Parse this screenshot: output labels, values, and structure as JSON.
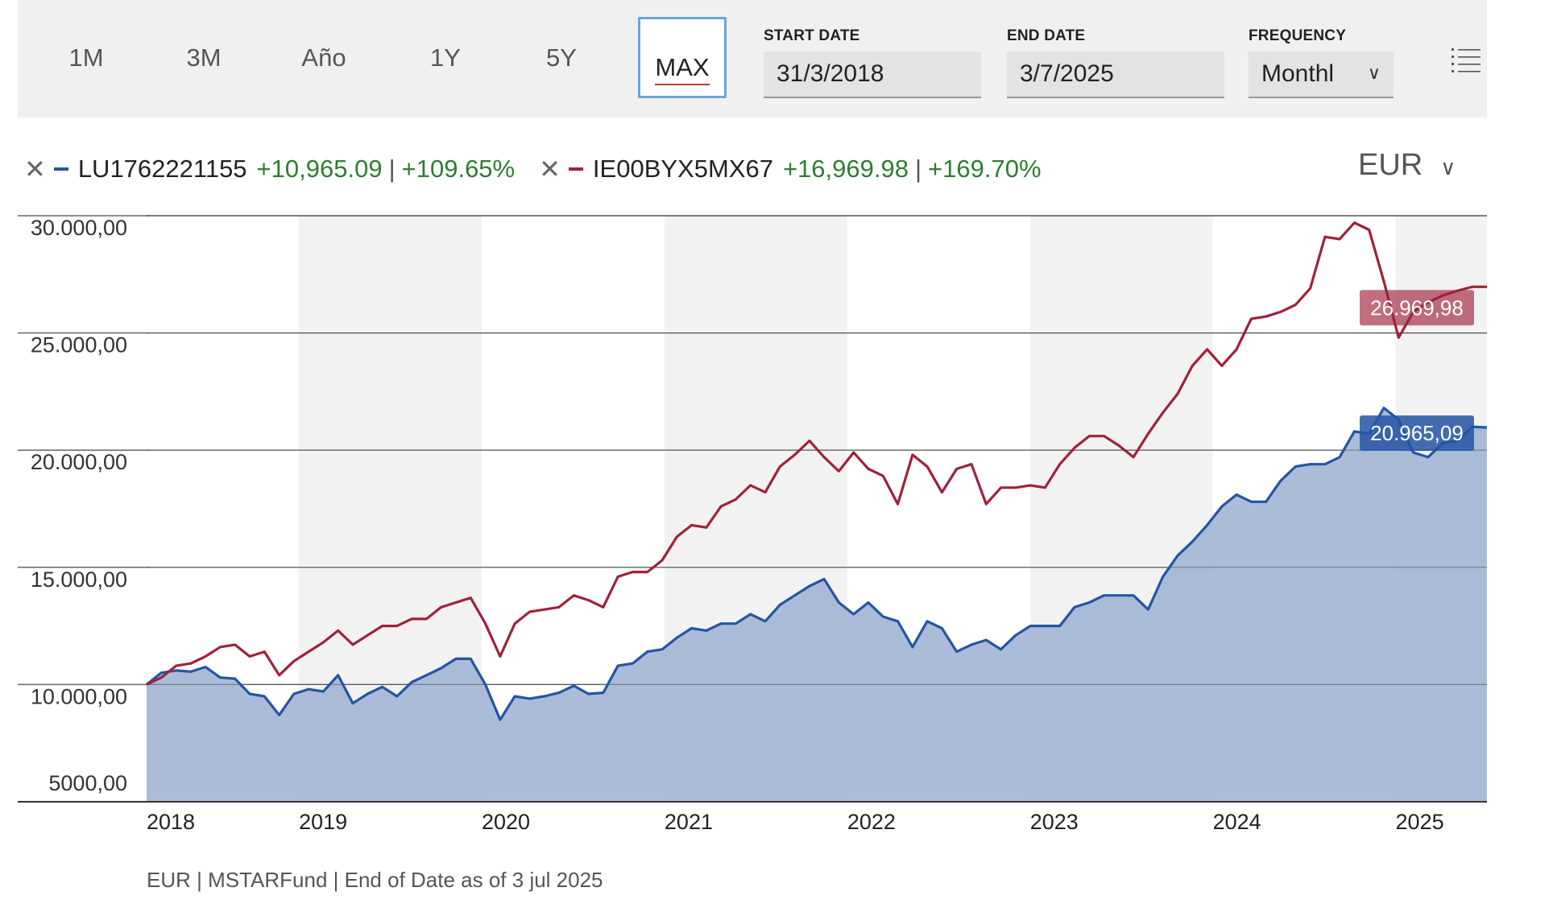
{
  "toolbar": {
    "ranges": [
      "1M",
      "3M",
      "Año",
      "1Y",
      "5Y",
      "MAX"
    ],
    "active_range": "MAX",
    "start_date_label": "START DATE",
    "start_date_value": "31/3/2018",
    "end_date_label": "END DATE",
    "end_date_value": "3/7/2025",
    "frequency_label": "FREQUENCY",
    "frequency_value": "Monthl",
    "menu_icon": "list-menu-icon"
  },
  "legend": {
    "series": [
      {
        "code": "LU1762221155",
        "gain": "+10,965.09",
        "gain_pct": "+109.65%",
        "color": "#2455a4"
      },
      {
        "code": "IE00BYX5MX67",
        "gain": "+16,969.98",
        "gain_pct": "+169.70%",
        "color": "#a0223a"
      }
    ]
  },
  "currency": "EUR",
  "footer": "EUR | MSTARFund | End of Date as of 3 jul 2025",
  "chart_data": {
    "type": "line",
    "x_start": "2018-03",
    "x_end": "2025-07",
    "x_ticks": [
      "2018",
      "2019",
      "2020",
      "2021",
      "2022",
      "2023",
      "2024",
      "2025"
    ],
    "y_ticks": [
      "30.000,00",
      "25.000,00",
      "20.000,00",
      "15.000,00",
      "10.000,00",
      "5000,00"
    ],
    "ylim": [
      5000,
      30000
    ],
    "grid": true,
    "shaded_years": [
      "2019",
      "2021",
      "2023",
      "2025"
    ],
    "series": [
      {
        "name": "LU1762221155",
        "color": "#2455a4",
        "fill": "#a4b6d6",
        "end_label": "20.965,09",
        "values": [
          10000,
          10500,
          10600,
          10550,
          10750,
          10300,
          10250,
          9600,
          9500,
          8700,
          9600,
          9800,
          9700,
          10400,
          9200,
          9600,
          9900,
          9500,
          10100,
          10400,
          10700,
          11100,
          11100,
          10000,
          8500,
          9500,
          9400,
          9500,
          9650,
          9950,
          9600,
          9650,
          10800,
          10900,
          11400,
          11500,
          12000,
          12400,
          12300,
          12600,
          12600,
          13000,
          12700,
          13400,
          13800,
          14200,
          14500,
          13500,
          13000,
          13500,
          12900,
          12700,
          11600,
          12700,
          12400,
          11400,
          11700,
          11900,
          11500,
          12100,
          12500,
          12500,
          12500,
          13300,
          13500,
          13800,
          13800,
          13800,
          13200,
          14600,
          15500,
          16100,
          16800,
          17600,
          18100,
          17800,
          17800,
          18700,
          19300,
          19400,
          19400,
          19700,
          20800,
          20700,
          21800,
          21300,
          19900,
          19700,
          20300,
          20400,
          21000,
          20965
        ]
      },
      {
        "name": "IE00BYX5MX67",
        "color": "#a0223a",
        "end_label": "26.969,98",
        "values": [
          10000,
          10300,
          10800,
          10900,
          11200,
          11600,
          11700,
          11200,
          11400,
          10400,
          11000,
          11400,
          11800,
          12300,
          11700,
          12100,
          12500,
          12500,
          12800,
          12800,
          13300,
          13500,
          13700,
          12600,
          11200,
          12600,
          13100,
          13200,
          13300,
          13800,
          13600,
          13300,
          14600,
          14800,
          14800,
          15300,
          16300,
          16800,
          16700,
          17600,
          17900,
          18500,
          18200,
          19300,
          19800,
          20400,
          19700,
          19100,
          19900,
          19200,
          18900,
          17700,
          19800,
          19300,
          18200,
          19200,
          19400,
          17700,
          18400,
          18400,
          18500,
          18400,
          19400,
          20100,
          20600,
          20600,
          20200,
          19700,
          20700,
          21600,
          22400,
          23600,
          24300,
          23600,
          24300,
          25600,
          25700,
          25900,
          26200,
          26900,
          29100,
          29000,
          29700,
          29400,
          27200,
          24800,
          25900,
          26300,
          26600,
          26800,
          26969,
          26969
        ]
      }
    ]
  }
}
